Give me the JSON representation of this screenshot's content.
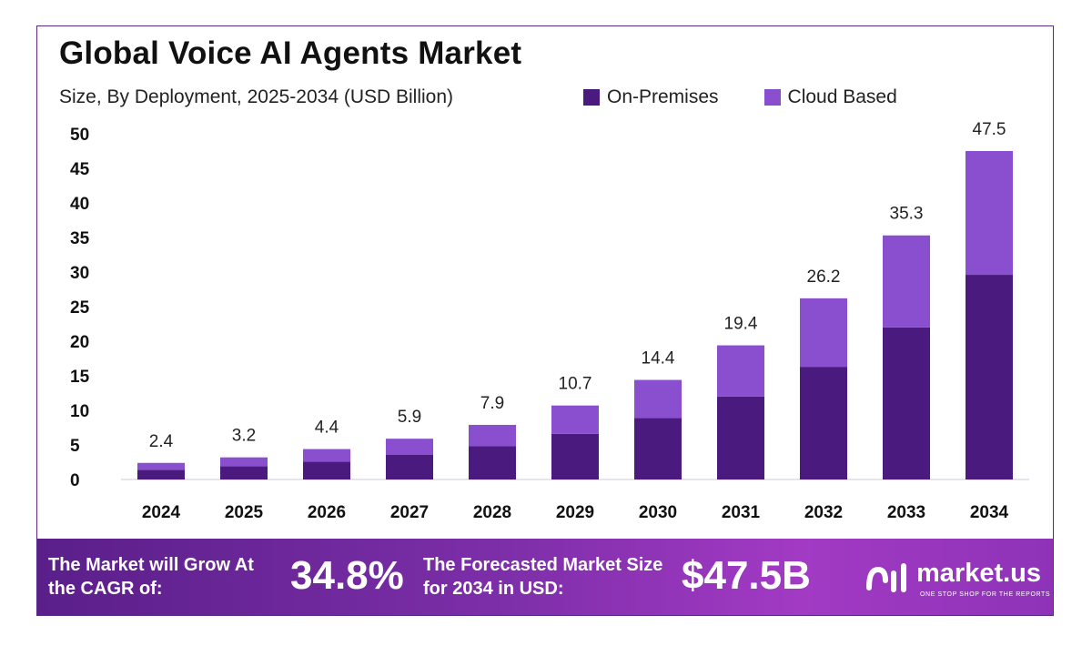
{
  "header": {
    "title": "Global Voice AI Agents Market",
    "subtitle": "Size, By Deployment, 2025-2034 (USD Billion)"
  },
  "legend": [
    {
      "label": "On-Premises",
      "color": "#4a1a7e"
    },
    {
      "label": "Cloud Based",
      "color": "#8a4fcf"
    }
  ],
  "chart_data": {
    "type": "bar",
    "stacked": true,
    "categories": [
      "2024",
      "2025",
      "2026",
      "2027",
      "2028",
      "2029",
      "2030",
      "2031",
      "2032",
      "2033",
      "2034"
    ],
    "series": [
      {
        "name": "On-Premises",
        "color": "#4a1a7e",
        "values": [
          1.4,
          1.9,
          2.6,
          3.6,
          4.8,
          6.6,
          8.9,
          12.0,
          16.3,
          22.0,
          29.6
        ]
      },
      {
        "name": "Cloud Based",
        "color": "#8a4fcf",
        "values": [
          1.0,
          1.3,
          1.8,
          2.3,
          3.1,
          4.1,
          5.5,
          7.4,
          9.9,
          13.3,
          17.9
        ]
      }
    ],
    "totals": [
      "2.4",
      "3.2",
      "4.4",
      "5.9",
      "7.9",
      "10.7",
      "14.4",
      "19.4",
      "26.2",
      "35.3",
      "47.5"
    ],
    "ylim": [
      0,
      50
    ],
    "yticks": [
      "0",
      "5",
      "10",
      "15",
      "20",
      "25",
      "30",
      "35",
      "40",
      "45",
      "50"
    ],
    "grid": false
  },
  "banner": {
    "cagr_text": "The Market will Grow At the CAGR of:",
    "cagr_value": "34.8%",
    "size_text": "The Forecasted Market Size for 2034 in USD:",
    "size_value": "$47.5B",
    "brand_name": "market.us",
    "brand_tagline": "ONE STOP SHOP FOR THE REPORTS"
  }
}
